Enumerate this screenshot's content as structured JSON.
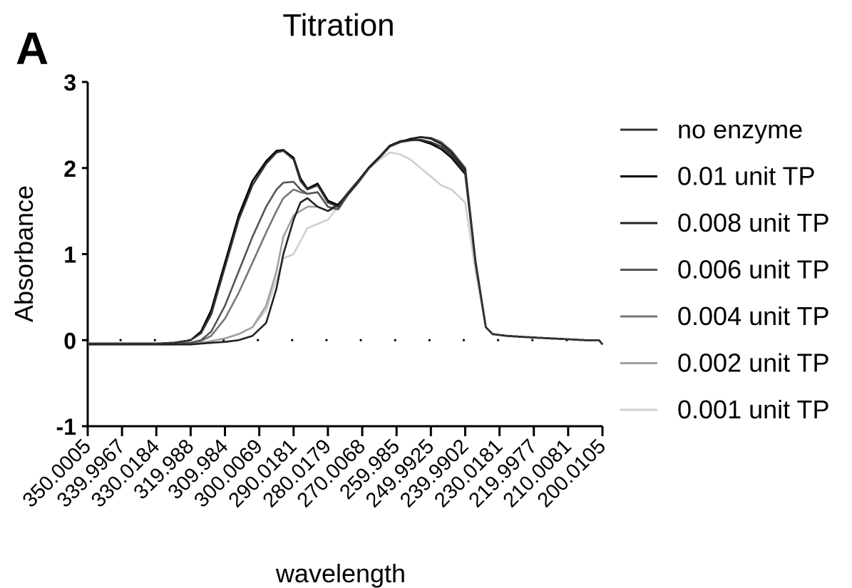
{
  "panel_label": "A",
  "chart_data": {
    "type": "line",
    "title": "Titration",
    "xlabel": "wavelength",
    "ylabel": "Absorbance",
    "ylim": [
      -1,
      3
    ],
    "xlim": [
      350.0005,
      200.0105
    ],
    "x_reversed": true,
    "grid": false,
    "legend_position": "right",
    "x_ticks": [
      "350.0005",
      "339.9967",
      "330.0184",
      "319.988",
      "309.984",
      "300.0069",
      "290.0181",
      "280.0179",
      "270.0068",
      "259.985",
      "249.9925",
      "239.9902",
      "230.0181",
      "219.9977",
      "210.0081",
      "200.0105"
    ],
    "y_ticks": [
      "-1",
      "0",
      "1",
      "2",
      "3"
    ],
    "series": [
      {
        "name": "no enzyme",
        "color": "#333333",
        "x": [
          350,
          340,
          330,
          325,
          320,
          317,
          314,
          310,
          306,
          302,
          298,
          295,
          293,
          290,
          288,
          286,
          283,
          280,
          277,
          274,
          271,
          268,
          265,
          262,
          259,
          256,
          253,
          250,
          247,
          244,
          240,
          237,
          234,
          232,
          230,
          228,
          224,
          220,
          215,
          210,
          205,
          201,
          200
        ],
        "y": [
          -0.04,
          -0.04,
          -0.04,
          -0.03,
          0.0,
          0.08,
          0.3,
          0.85,
          1.4,
          1.8,
          2.05,
          2.18,
          2.2,
          2.1,
          1.85,
          1.75,
          1.8,
          1.6,
          1.55,
          1.72,
          1.85,
          2.0,
          2.12,
          2.25,
          2.3,
          2.32,
          2.33,
          2.3,
          2.25,
          2.15,
          1.95,
          0.9,
          0.15,
          0.07,
          0.06,
          0.05,
          0.04,
          0.03,
          0.02,
          0.01,
          0.0,
          0.0,
          -0.05
        ]
      },
      {
        "name": "0.01 unit TP",
        "color": "#000000",
        "x": [
          350,
          340,
          330,
          325,
          320,
          317,
          314,
          310,
          306,
          302,
          298,
          295,
          293,
          290,
          288,
          286,
          283,
          280,
          277,
          274,
          271,
          268,
          265,
          262,
          259,
          256,
          253,
          250,
          247,
          244,
          240,
          237,
          234,
          232,
          230,
          228,
          224,
          220,
          215,
          210,
          205,
          201,
          200
        ],
        "y": [
          -0.04,
          -0.04,
          -0.04,
          -0.03,
          0.0,
          0.1,
          0.35,
          0.9,
          1.45,
          1.85,
          2.08,
          2.2,
          2.21,
          2.12,
          1.88,
          1.76,
          1.82,
          1.62,
          1.57,
          1.72,
          1.86,
          2.01,
          2.13,
          2.26,
          2.31,
          2.33,
          2.32,
          2.28,
          2.22,
          2.12,
          1.93,
          0.9,
          0.15,
          0.07,
          0.06,
          0.05,
          0.04,
          0.03,
          0.02,
          0.01,
          0.0,
          0.0,
          -0.05
        ]
      },
      {
        "name": "0.008 unit TP",
        "color": "#222222",
        "x": [
          350,
          340,
          330,
          325,
          320,
          317,
          314,
          310,
          306,
          302,
          298,
          295,
          293,
          290,
          288,
          286,
          283,
          280,
          277,
          274,
          271,
          268,
          265,
          262,
          259,
          256,
          253,
          250,
          247,
          244,
          240,
          237,
          234,
          232,
          230,
          228,
          224,
          220,
          215,
          210,
          205,
          201,
          200
        ],
        "y": [
          -0.05,
          -0.05,
          -0.05,
          -0.05,
          -0.05,
          -0.04,
          -0.03,
          -0.02,
          0.0,
          0.05,
          0.2,
          0.6,
          1.0,
          1.4,
          1.6,
          1.65,
          1.55,
          1.5,
          1.58,
          1.7,
          1.85,
          2.0,
          2.12,
          2.25,
          2.3,
          2.34,
          2.36,
          2.34,
          2.28,
          2.18,
          1.98,
          0.92,
          0.15,
          0.07,
          0.06,
          0.05,
          0.04,
          0.03,
          0.02,
          0.01,
          0.0,
          0.0,
          -0.05
        ]
      },
      {
        "name": "0.006 unit TP",
        "color": "#555555",
        "x": [
          350,
          340,
          330,
          325,
          320,
          317,
          314,
          310,
          306,
          302,
          298,
          295,
          293,
          290,
          288,
          286,
          283,
          280,
          277,
          274,
          271,
          268,
          265,
          262,
          259,
          256,
          253,
          250,
          247,
          244,
          240,
          237,
          234,
          232,
          230,
          228,
          224,
          220,
          215,
          210,
          205,
          201,
          200
        ],
        "y": [
          -0.04,
          -0.04,
          -0.04,
          -0.04,
          -0.03,
          0.0,
          0.1,
          0.4,
          0.8,
          1.2,
          1.55,
          1.75,
          1.83,
          1.84,
          1.75,
          1.7,
          1.72,
          1.55,
          1.52,
          1.7,
          1.84,
          2.0,
          2.12,
          2.25,
          2.3,
          2.33,
          2.36,
          2.35,
          2.3,
          2.2,
          2.0,
          0.92,
          0.15,
          0.07,
          0.06,
          0.05,
          0.04,
          0.03,
          0.02,
          0.01,
          0.0,
          0.0,
          -0.05
        ]
      },
      {
        "name": "0.004 unit TP",
        "color": "#777777",
        "x": [
          350,
          340,
          330,
          325,
          320,
          317,
          314,
          310,
          306,
          302,
          298,
          295,
          293,
          290,
          288,
          286,
          283,
          280,
          277,
          274,
          271,
          268,
          265,
          262,
          259,
          256,
          253,
          250,
          247,
          244,
          240,
          237,
          234,
          232,
          230,
          228,
          224,
          220,
          215,
          210,
          205,
          201,
          200
        ],
        "y": [
          -0.04,
          -0.04,
          -0.04,
          -0.04,
          -0.03,
          -0.01,
          0.05,
          0.25,
          0.55,
          0.9,
          1.25,
          1.5,
          1.65,
          1.75,
          1.72,
          1.7,
          1.72,
          1.55,
          1.52,
          1.7,
          1.84,
          2.0,
          2.12,
          2.25,
          2.3,
          2.33,
          2.36,
          2.35,
          2.3,
          2.2,
          2.0,
          0.92,
          0.15,
          0.07,
          0.06,
          0.05,
          0.04,
          0.03,
          0.02,
          0.01,
          0.0,
          0.0,
          -0.05
        ]
      },
      {
        "name": "0.002 unit TP",
        "color": "#a0a0a0",
        "x": [
          350,
          340,
          330,
          325,
          320,
          317,
          314,
          310,
          306,
          302,
          298,
          295,
          293,
          290,
          288,
          286,
          283,
          280,
          277,
          274,
          271,
          268,
          265,
          262,
          259,
          256,
          253,
          250,
          247,
          244,
          240,
          237,
          234,
          232,
          230,
          228,
          224,
          220,
          215,
          210,
          205,
          201,
          200
        ],
        "y": [
          -0.05,
          -0.05,
          -0.05,
          -0.05,
          -0.04,
          -0.03,
          -0.01,
          0.02,
          0.07,
          0.15,
          0.4,
          0.8,
          1.2,
          1.45,
          1.5,
          1.55,
          1.55,
          1.5,
          1.55,
          1.7,
          1.84,
          2.0,
          2.12,
          2.25,
          2.3,
          2.33,
          2.36,
          2.35,
          2.3,
          2.2,
          2.0,
          0.92,
          0.15,
          0.07,
          0.06,
          0.05,
          0.04,
          0.03,
          0.02,
          0.01,
          0.0,
          0.0,
          -0.05
        ]
      },
      {
        "name": "0.001 unit TP",
        "color": "#cfcfcf",
        "x": [
          350,
          340,
          330,
          325,
          320,
          317,
          314,
          310,
          306,
          302,
          298,
          295,
          293,
          290,
          288,
          286,
          283,
          280,
          277,
          274,
          271,
          268,
          265,
          262,
          259,
          256,
          253,
          250,
          247,
          244,
          240,
          237,
          234,
          232,
          230,
          228,
          224,
          220,
          215,
          210,
          205,
          201,
          200
        ],
        "y": [
          -0.05,
          -0.05,
          -0.05,
          -0.05,
          -0.04,
          -0.03,
          -0.01,
          0.02,
          0.07,
          0.15,
          0.35,
          0.7,
          0.95,
          1.0,
          1.15,
          1.3,
          1.35,
          1.4,
          1.55,
          1.7,
          1.84,
          2.0,
          2.1,
          2.18,
          2.16,
          2.1,
          2.0,
          1.9,
          1.8,
          1.75,
          1.6,
          0.8,
          0.15,
          0.07,
          0.06,
          0.05,
          0.04,
          0.03,
          0.02,
          0.01,
          0.0,
          0.0,
          -0.05
        ]
      }
    ]
  }
}
